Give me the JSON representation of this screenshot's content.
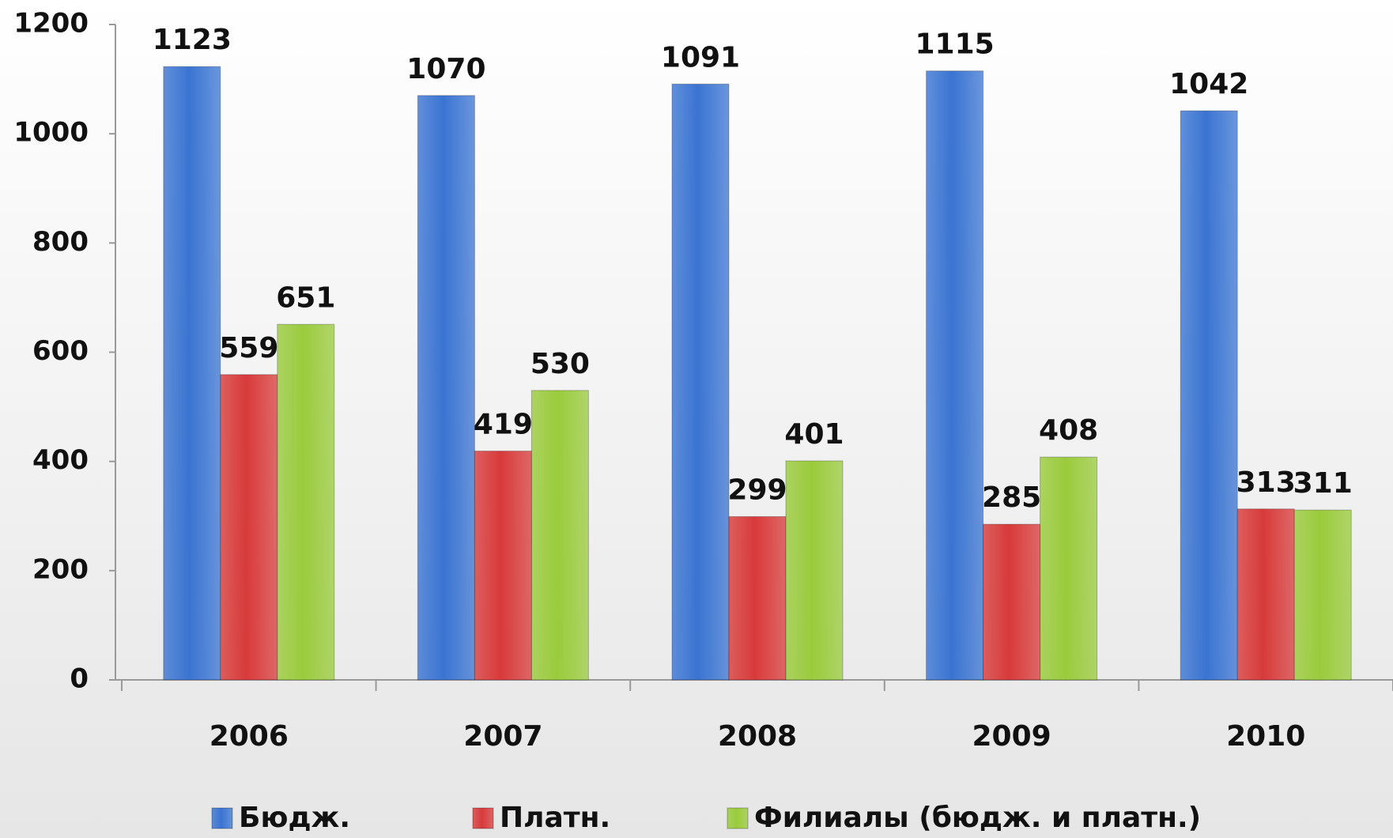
{
  "chart_data": {
    "type": "bar",
    "categories": [
      "2006",
      "2007",
      "2008",
      "2009",
      "2010"
    ],
    "series": [
      {
        "name": "Бюдж.",
        "color": "#3a74d2",
        "values": [
          1123,
          1070,
          1091,
          1115,
          1042
        ]
      },
      {
        "name": "Платн.",
        "color": "#d83a3a",
        "values": [
          559,
          419,
          299,
          285,
          313
        ]
      },
      {
        "name": "Филиалы (бюдж. и платн.)",
        "color": "#9acb3c",
        "values": [
          651,
          530,
          401,
          408,
          311
        ]
      }
    ],
    "ylim": [
      0,
      1200
    ],
    "yticks": [
      0,
      200,
      400,
      600,
      800,
      1000,
      1200
    ],
    "grid": false,
    "legend": "bottom"
  }
}
